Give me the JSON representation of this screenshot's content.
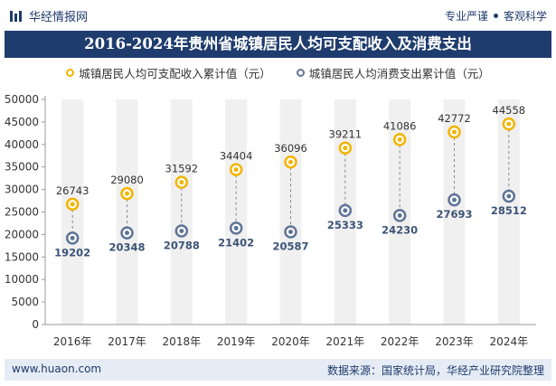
{
  "header": {
    "brand": "华经情报网",
    "tag1": "专业严谨",
    "tag2": "客观科学"
  },
  "title": "2016-2024年贵州省城镇居民人均可支配收入及消费支出",
  "legend": {
    "income": "城镇居民人均可支配收入累计值（元）",
    "consumption": "城镇居民人均消费支出累计值（元）"
  },
  "footer": {
    "website": "www.huaon.com",
    "source": "数据来源：国家统计局，华经产业研究院整理"
  },
  "colors": {
    "income": "#f2b500",
    "consumption": "#5f7497",
    "title_bg": "#1f3c6e",
    "band": "#f0f0f0"
  },
  "chart_data": {
    "type": "scatter",
    "title": "2016-2024年贵州省城镇居民人均可支配收入及消费支出",
    "categories": [
      "2016年",
      "2017年",
      "2018年",
      "2019年",
      "2020年",
      "2021年",
      "2022年",
      "2023年",
      "2024年"
    ],
    "series": [
      {
        "name": "城镇居民人均可支配收入累计值（元）",
        "values": [
          26743,
          29080,
          31592,
          34404,
          36096,
          39211,
          41086,
          42772,
          44558
        ]
      },
      {
        "name": "城镇居民人均消费支出累计值（元）",
        "values": [
          19202,
          20348,
          20788,
          21402,
          20587,
          25333,
          24230,
          27693,
          28512
        ]
      }
    ],
    "ylim": [
      0,
      50000
    ],
    "yticks": [
      0,
      5000,
      10000,
      15000,
      20000,
      25000,
      30000,
      35000,
      40000,
      45000,
      50000
    ],
    "grid": false,
    "legend_position": "top"
  }
}
